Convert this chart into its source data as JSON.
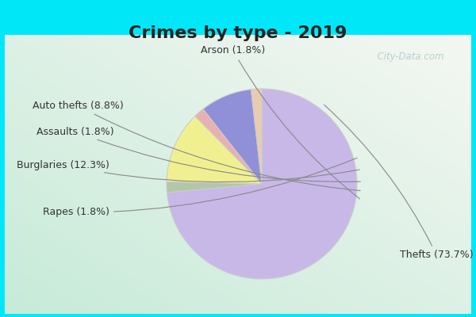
{
  "title": "Crimes by type - 2019",
  "slices": [
    {
      "label": "Thefts",
      "pct": 73.7,
      "color": "#c8b8e8"
    },
    {
      "label": "Rapes",
      "pct": 1.8,
      "color": "#b0c8a8"
    },
    {
      "label": "Burglaries",
      "pct": 12.3,
      "color": "#f0f090"
    },
    {
      "label": "Assaults",
      "pct": 1.8,
      "color": "#e8b0b0"
    },
    {
      "label": "Auto thefts",
      "pct": 8.8,
      "color": "#9090d8"
    },
    {
      "label": "Arson",
      "pct": 1.8,
      "color": "#e8ccb0"
    }
  ],
  "title_fontsize": 16,
  "label_fontsize": 9,
  "bg_outer": "#00e8f8",
  "bg_inner_tl": "#c8e8d8",
  "bg_inner_br": "#e8f4f0",
  "watermark": "  City-Data.com",
  "startangle": 90
}
